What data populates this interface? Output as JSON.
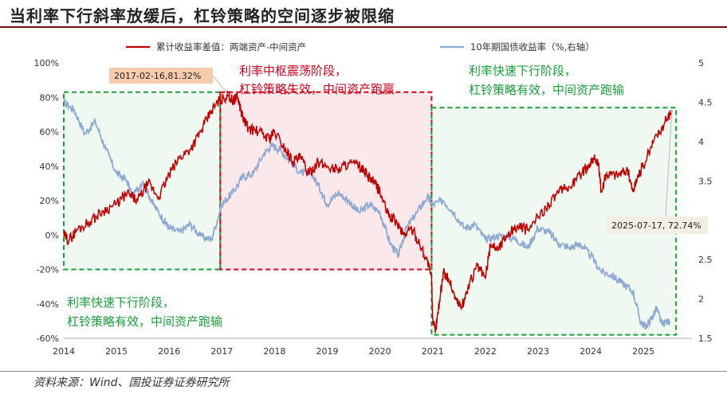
{
  "title": "当利率下行斜率放缓后，杠铃策略的空间逐步被限缩",
  "source": "资料来源：Wind、国投证券证券研究所",
  "chart_data": {
    "type": "line",
    "legend": {
      "placement": "top",
      "items": [
        {
          "name": "累计收益率差值：两端资产-中间资产",
          "color": "#c00000",
          "axis": "left"
        },
        {
          "name": "10年期国债收益率（%,右轴）",
          "color": "#8eaad0",
          "axis": "right"
        }
      ]
    },
    "x_ticks": [
      "2014",
      "2015",
      "2016",
      "2017",
      "2018",
      "2019",
      "2020",
      "2021",
      "2022",
      "2023",
      "2024",
      "2025"
    ],
    "left_axis": {
      "ticks": [
        "-60%",
        "-40%",
        "-20%",
        "0%",
        "20%",
        "40%",
        "60%",
        "80%",
        "100%"
      ],
      "ylim": [
        -60,
        100
      ]
    },
    "right_axis": {
      "ticks": [
        "1.5",
        "2",
        "2.5",
        "3",
        "3.5",
        "4",
        "4.5",
        "5"
      ],
      "ylim": [
        1.5,
        5
      ]
    },
    "series": [
      {
        "name": "累计收益率差值：两端资产-中间资产",
        "axis": "left",
        "color": "#c00000",
        "points": [
          [
            2014.0,
            0
          ],
          [
            2014.1,
            -3
          ],
          [
            2014.25,
            3
          ],
          [
            2014.5,
            8
          ],
          [
            2014.75,
            14
          ],
          [
            2015.0,
            18
          ],
          [
            2015.2,
            24
          ],
          [
            2015.4,
            20
          ],
          [
            2015.6,
            30
          ],
          [
            2015.8,
            22
          ],
          [
            2016.0,
            35
          ],
          [
            2016.2,
            45
          ],
          [
            2016.4,
            50
          ],
          [
            2016.6,
            60
          ],
          [
            2016.8,
            72
          ],
          [
            2016.95,
            78
          ],
          [
            2017.13,
            81.3
          ],
          [
            2017.2,
            78
          ],
          [
            2017.3,
            80
          ],
          [
            2017.4,
            68
          ],
          [
            2017.5,
            62
          ],
          [
            2017.7,
            60
          ],
          [
            2017.9,
            56
          ],
          [
            2018.0,
            60
          ],
          [
            2018.2,
            50
          ],
          [
            2018.35,
            43
          ],
          [
            2018.5,
            45
          ],
          [
            2018.65,
            35
          ],
          [
            2018.8,
            42
          ],
          [
            2019.0,
            40
          ],
          [
            2019.2,
            38
          ],
          [
            2019.4,
            42
          ],
          [
            2019.6,
            40
          ],
          [
            2019.75,
            35
          ],
          [
            2019.9,
            30
          ],
          [
            2020.0,
            25
          ],
          [
            2020.15,
            12
          ],
          [
            2020.3,
            8
          ],
          [
            2020.45,
            0
          ],
          [
            2020.6,
            4
          ],
          [
            2020.75,
            -5
          ],
          [
            2020.9,
            -15
          ],
          [
            2020.98,
            -25
          ],
          [
            2021.0,
            -48
          ],
          [
            2021.05,
            -57
          ],
          [
            2021.1,
            -45
          ],
          [
            2021.2,
            -22
          ],
          [
            2021.3,
            -25
          ],
          [
            2021.45,
            -38
          ],
          [
            2021.55,
            -42
          ],
          [
            2021.7,
            -28
          ],
          [
            2021.85,
            -18
          ],
          [
            2022.0,
            -25
          ],
          [
            2022.1,
            -5
          ],
          [
            2022.25,
            -8
          ],
          [
            2022.4,
            0
          ],
          [
            2022.6,
            5
          ],
          [
            2022.8,
            3
          ],
          [
            2023.0,
            10
          ],
          [
            2023.2,
            18
          ],
          [
            2023.4,
            25
          ],
          [
            2023.6,
            28
          ],
          [
            2023.8,
            35
          ],
          [
            2023.95,
            40
          ],
          [
            2024.05,
            45
          ],
          [
            2024.15,
            40
          ],
          [
            2024.2,
            25
          ],
          [
            2024.3,
            36
          ],
          [
            2024.5,
            35
          ],
          [
            2024.7,
            38
          ],
          [
            2024.8,
            25
          ],
          [
            2024.9,
            35
          ],
          [
            2025.0,
            40
          ],
          [
            2025.2,
            55
          ],
          [
            2025.4,
            65
          ],
          [
            2025.54,
            72.7
          ]
        ]
      },
      {
        "name": "10年期国债收益率（%,右轴）",
        "axis": "right",
        "color": "#8eaad0",
        "points": [
          [
            2014.0,
            4.5
          ],
          [
            2014.2,
            4.4
          ],
          [
            2014.4,
            4.1
          ],
          [
            2014.6,
            4.25
          ],
          [
            2014.8,
            3.9
          ],
          [
            2015.0,
            3.6
          ],
          [
            2015.2,
            3.5
          ],
          [
            2015.3,
            3.3
          ],
          [
            2015.5,
            3.5
          ],
          [
            2015.7,
            3.2
          ],
          [
            2015.9,
            3.0
          ],
          [
            2016.0,
            2.9
          ],
          [
            2016.2,
            2.85
          ],
          [
            2016.4,
            2.95
          ],
          [
            2016.6,
            2.8
          ],
          [
            2016.8,
            2.75
          ],
          [
            2017.0,
            3.2
          ],
          [
            2017.2,
            3.35
          ],
          [
            2017.4,
            3.55
          ],
          [
            2017.6,
            3.6
          ],
          [
            2017.8,
            3.85
          ],
          [
            2017.95,
            3.95
          ],
          [
            2018.1,
            3.9
          ],
          [
            2018.3,
            3.75
          ],
          [
            2018.5,
            3.6
          ],
          [
            2018.7,
            3.6
          ],
          [
            2018.9,
            3.35
          ],
          [
            2019.0,
            3.2
          ],
          [
            2019.2,
            3.35
          ],
          [
            2019.4,
            3.25
          ],
          [
            2019.6,
            3.1
          ],
          [
            2019.8,
            3.2
          ],
          [
            2020.0,
            3.1
          ],
          [
            2020.2,
            2.7
          ],
          [
            2020.35,
            2.55
          ],
          [
            2020.5,
            2.9
          ],
          [
            2020.7,
            3.1
          ],
          [
            2020.9,
            3.3
          ],
          [
            2021.0,
            3.2
          ],
          [
            2021.2,
            3.25
          ],
          [
            2021.4,
            3.1
          ],
          [
            2021.6,
            2.9
          ],
          [
            2021.8,
            2.95
          ],
          [
            2022.0,
            2.75
          ],
          [
            2022.2,
            2.8
          ],
          [
            2022.4,
            2.8
          ],
          [
            2022.6,
            2.75
          ],
          [
            2022.8,
            2.65
          ],
          [
            2023.0,
            2.9
          ],
          [
            2023.2,
            2.85
          ],
          [
            2023.4,
            2.7
          ],
          [
            2023.6,
            2.65
          ],
          [
            2023.8,
            2.7
          ],
          [
            2024.0,
            2.55
          ],
          [
            2024.2,
            2.35
          ],
          [
            2024.4,
            2.3
          ],
          [
            2024.6,
            2.2
          ],
          [
            2024.8,
            2.1
          ],
          [
            2024.95,
            1.7
          ],
          [
            2025.05,
            1.65
          ],
          [
            2025.15,
            1.75
          ],
          [
            2025.25,
            1.88
          ],
          [
            2025.35,
            1.68
          ],
          [
            2025.5,
            1.72
          ]
        ]
      }
    ],
    "callouts": [
      {
        "text": "2017-02-16,81.32%",
        "x": 2017.13,
        "y": 81.32
      },
      {
        "text": "2025-07-17, 72.74%",
        "x": 2025.54,
        "y": 72.74
      }
    ],
    "regions": [
      {
        "color": "#19a03a",
        "label": "利率快速下行阶段，杠铃策略有效，中间资产跑输",
        "x_range": [
          2014.0,
          2016.97
        ],
        "y_range": [
          -20,
          83
        ]
      },
      {
        "color": "#d0021b",
        "label": "利率中枢震荡阶段，杠铃策略失效，中间资产跑赢",
        "x_range": [
          2016.97,
          2020.98
        ],
        "y_range": [
          -20,
          83
        ]
      },
      {
        "color": "#19a03a",
        "label": "利率快速下行阶段，杠铃策略有效，中间资产跑输",
        "x_range": [
          2020.98,
          2025.62
        ],
        "y_range": [
          -58,
          74
        ]
      }
    ],
    "annotations": [
      {
        "color": "red",
        "lines": [
          "利率中枢震荡阶段，",
          "杠铃策略失效，中间资产跑赢"
        ]
      },
      {
        "color": "green",
        "lines": [
          "利率快速下行阶段，",
          "杠铃策略有效，中间资产跑输"
        ]
      },
      {
        "color": "green",
        "lines": [
          "利率快速下行阶段，",
          "杠铃策略有效，中间资产跑输"
        ]
      }
    ]
  }
}
